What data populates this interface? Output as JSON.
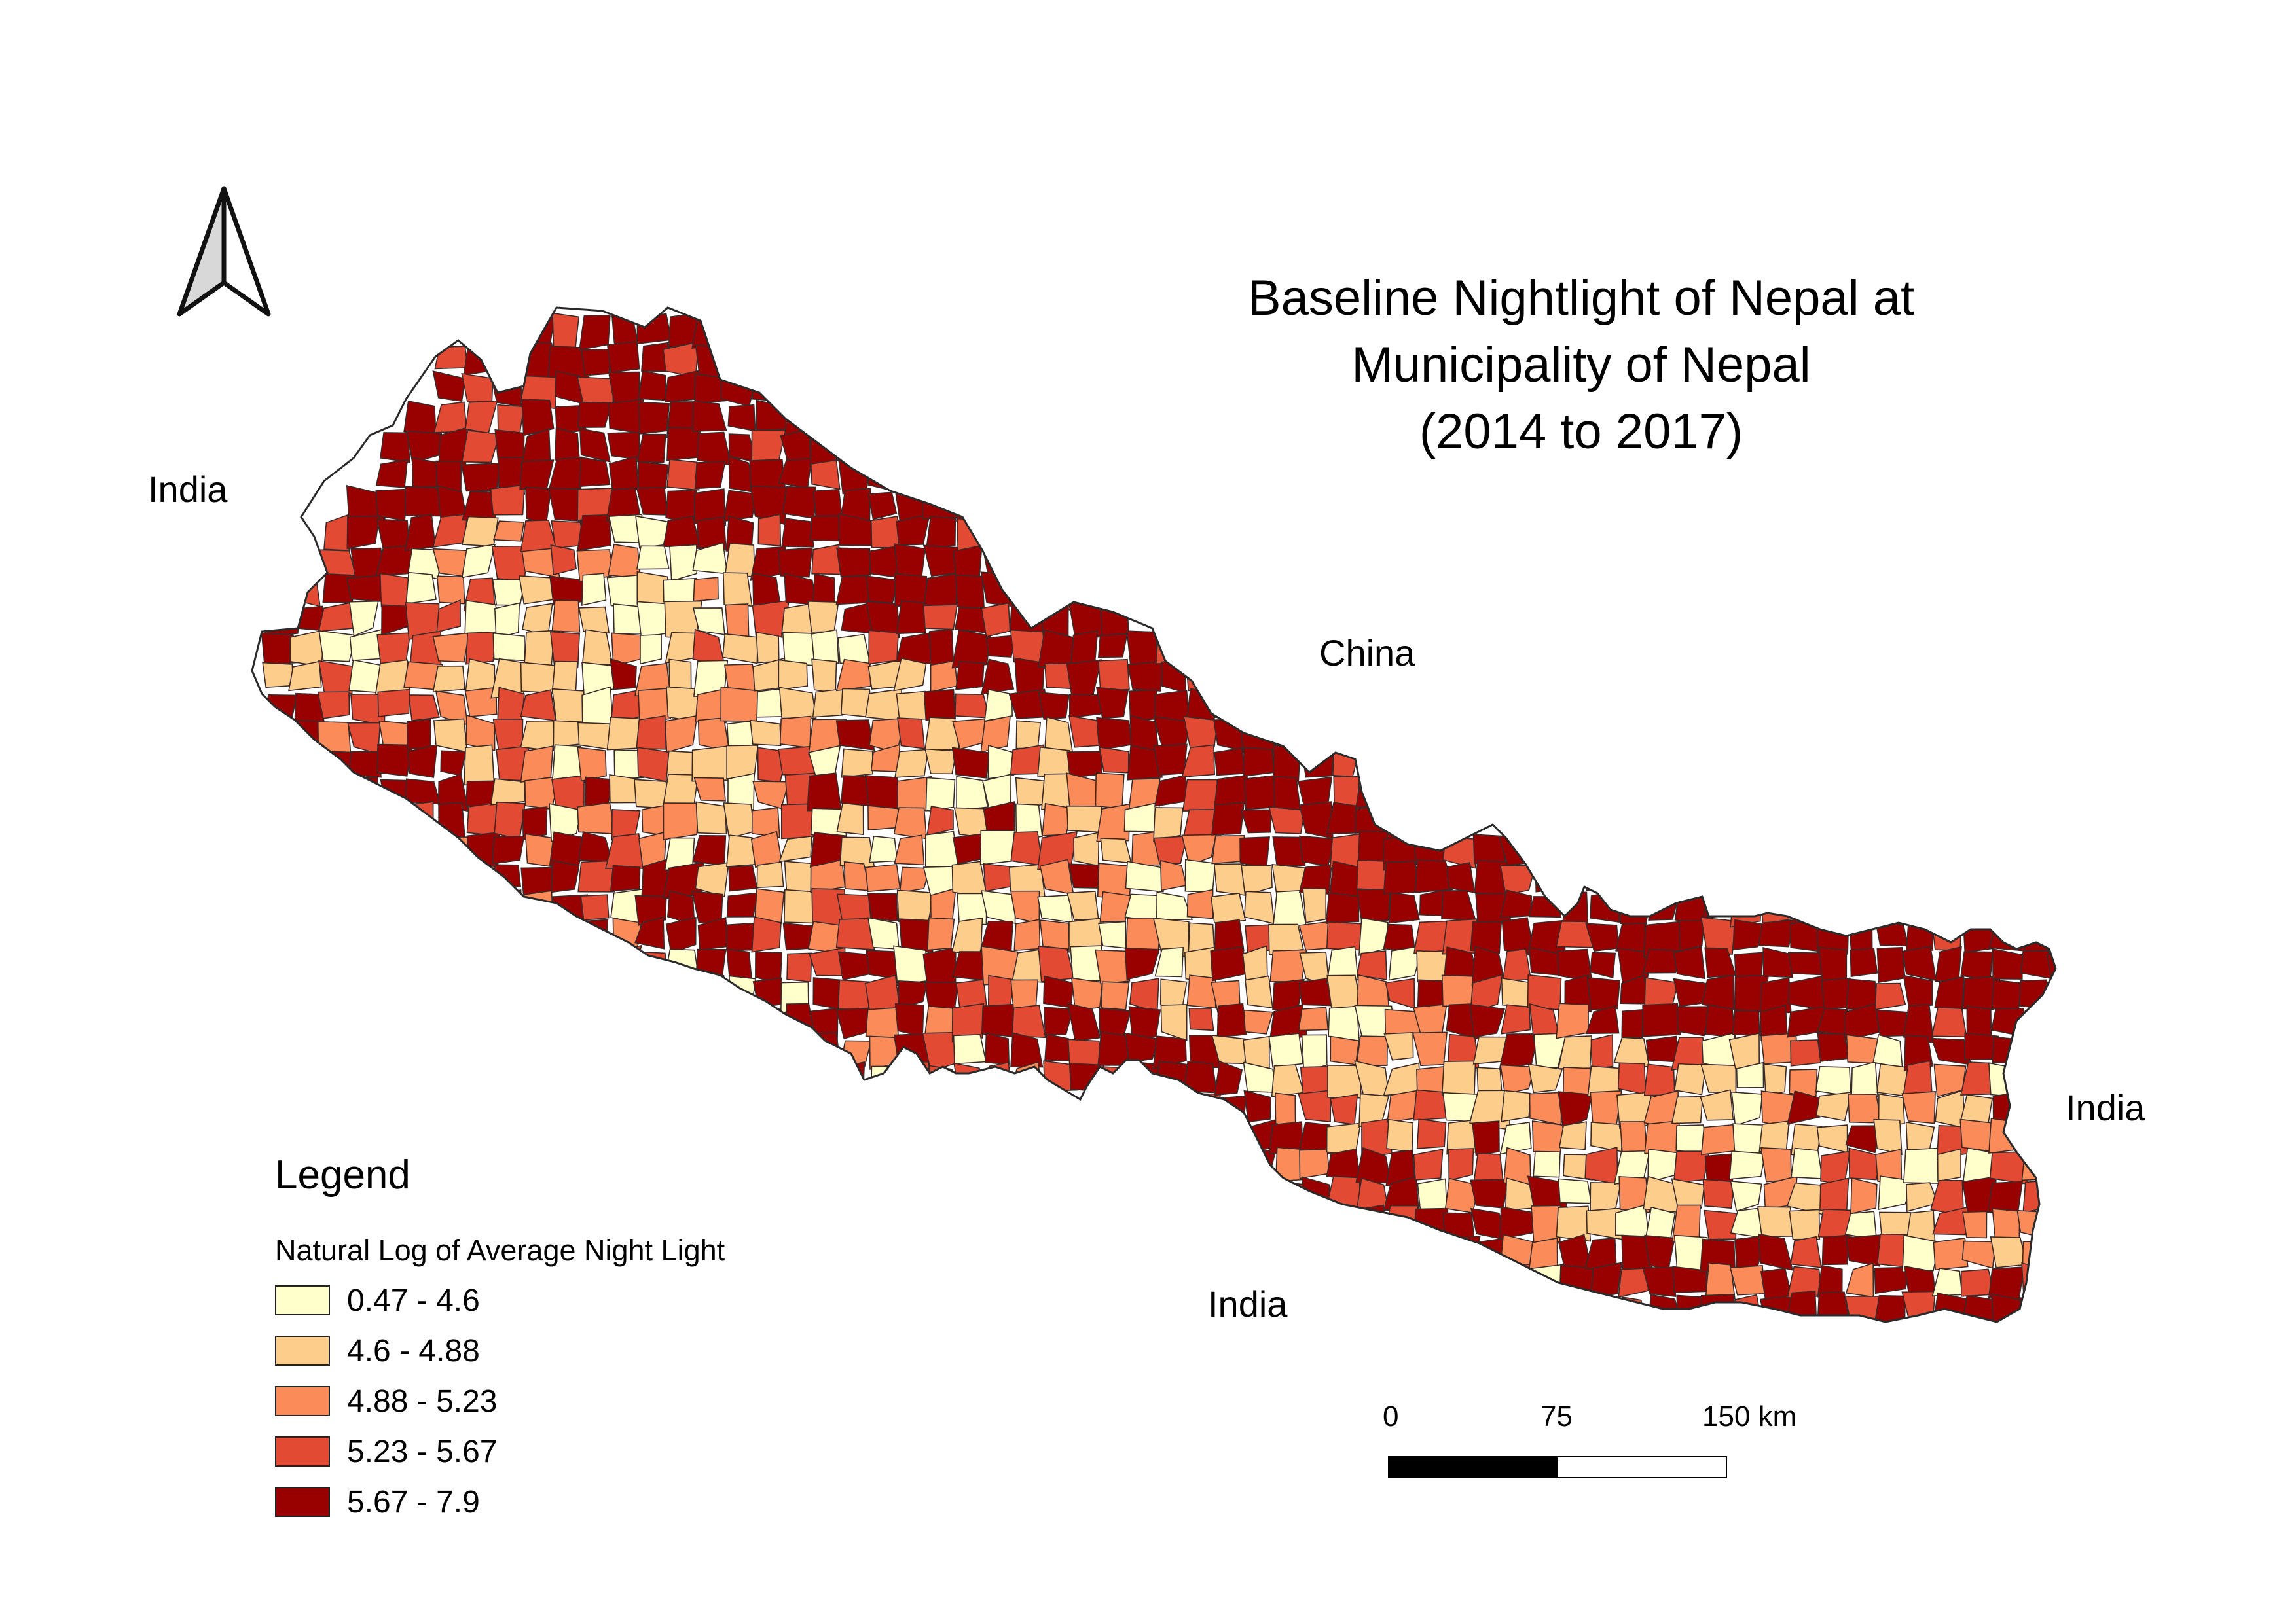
{
  "title_lines": [
    "Baseline Nightlight of Nepal at",
    "Municipality of Nepal",
    "(2014 to 2017)"
  ],
  "country_labels": {
    "india_west": "India",
    "china": "China",
    "india_east": "India",
    "india_south": "India"
  },
  "legend": {
    "title": "Legend",
    "subtitle": "Natural Log of Average Night Light",
    "classes": [
      {
        "label": "0.47 - 4.6",
        "color": "#ffffcc"
      },
      {
        "label": "4.6 - 4.88",
        "color": "#fdcd8c"
      },
      {
        "label": "4.88 - 5.23",
        "color": "#fb8c59"
      },
      {
        "label": "5.23 - 5.67",
        "color": "#e34a33"
      },
      {
        "label": "5.67 - 7.9",
        "color": "#990000"
      }
    ]
  },
  "scale_bar": {
    "labels": [
      "0",
      "75",
      "150 km"
    ]
  },
  "north_arrow": {
    "icon": "north-arrow-icon"
  }
}
